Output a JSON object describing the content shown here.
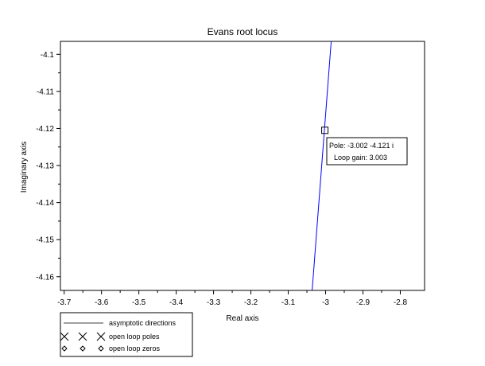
{
  "chart_data": {
    "type": "line",
    "title": "Evans root locus",
    "xlabel": "Real axis",
    "ylabel": "Imaginary axis",
    "xlim": [
      -3.71,
      -2.735
    ],
    "ylim": [
      -4.1637,
      -4.0965
    ],
    "xticks": [
      -3.7,
      -3.6,
      -3.5,
      -3.4,
      -3.3,
      -3.2,
      -3.1,
      -3.0,
      -2.9,
      -2.8
    ],
    "xtick_labels": [
      "-3.7",
      "-3.6",
      "-3.5",
      "-3.4",
      "-3.3",
      "-3.2",
      "-3.1",
      "-3",
      "-2.9",
      "-2.8"
    ],
    "yticks": [
      -4.16,
      -4.15,
      -4.14,
      -4.13,
      -4.12,
      -4.11,
      -4.1
    ],
    "ytick_labels": [
      "-4.16",
      "-4.15",
      "-4.14",
      "-4.13",
      "-4.12",
      "-4.11",
      "-4.1"
    ],
    "grid": false,
    "series": [
      {
        "color": "#0000ff",
        "points": [
          [
            -3.036,
            -4.1637
          ],
          [
            -2.985,
            -4.0965
          ]
        ]
      }
    ],
    "datatip": {
      "x": -3.002,
      "y": -4.1205,
      "line1": "Pole: -3.002 -4.121 i",
      "line2": "Loop gain: 3.003"
    },
    "legend": {
      "placement": "bottom-left",
      "entries": [
        {
          "label": "asymptotic directions",
          "marker": "line"
        },
        {
          "label": "open loop poles",
          "marker": "x"
        },
        {
          "label": "open loop zeros",
          "marker": "diamond"
        }
      ]
    }
  }
}
